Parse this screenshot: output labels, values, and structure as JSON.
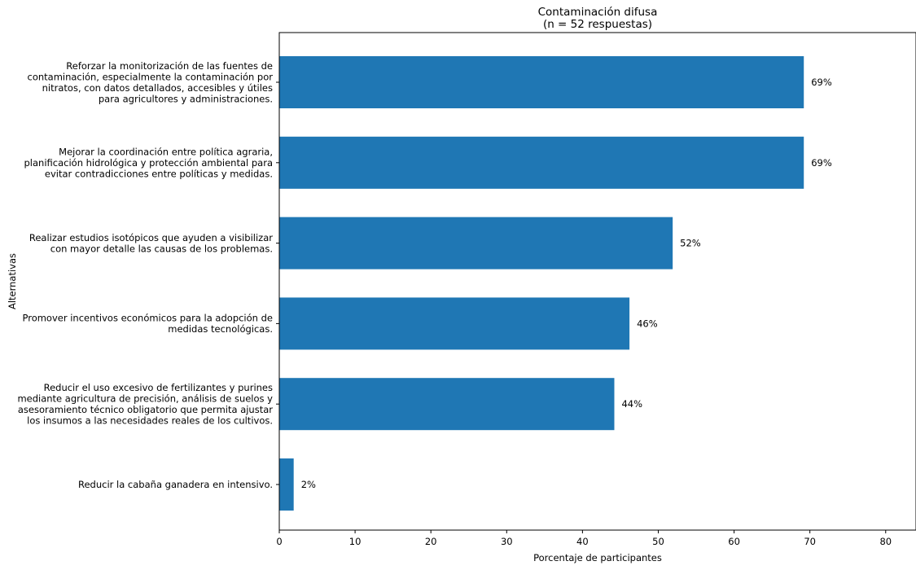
{
  "chart_data": {
    "type": "bar",
    "orientation": "horizontal",
    "title": "Contaminación difusa",
    "subtitle": "(n = 52 respuestas)",
    "xlabel": "Porcentaje de participantes",
    "ylabel": "Alternativas",
    "xlim": [
      0,
      84
    ],
    "xticks": [
      0,
      10,
      20,
      30,
      40,
      50,
      60,
      70,
      80
    ],
    "grid": false,
    "bar_color": "#1f77b4",
    "categories": [
      [
        "Reforzar la monitorización de las fuentes de",
        "contaminación, especialmente la contaminación por",
        "nitratos, con datos detallados, accesibles y útiles",
        "para agricultores y administraciones."
      ],
      [
        "Mejorar la coordinación entre política agraria,",
        "planificación hidrológica y protección ambiental para",
        "evitar contradicciones entre políticas y medidas."
      ],
      [
        "Realizar estudios isotópicos que ayuden a visibilizar",
        "con mayor detalle las causas de los problemas."
      ],
      [
        "Promover incentivos económicos para la adopción de",
        "medidas tecnológicas."
      ],
      [
        "Reducir el uso excesivo de fertilizantes y purines",
        "mediante agricultura de precisión, análisis de suelos y",
        "asesoramiento técnico obligatorio que permita ajustar",
        "los insumos a las necesidades reales de los cultivos."
      ],
      [
        "Reducir la cabaña ganadera en intensivo."
      ]
    ],
    "values": [
      69.2,
      69.2,
      51.9,
      46.2,
      44.2,
      1.9
    ],
    "value_labels": [
      "69%",
      "69%",
      "52%",
      "46%",
      "44%",
      "2%"
    ]
  }
}
